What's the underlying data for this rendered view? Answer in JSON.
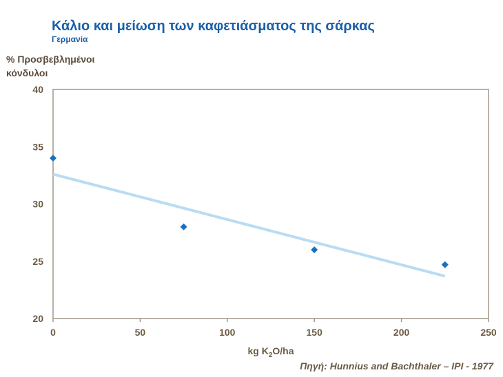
{
  "chart_data": {
    "type": "scatter",
    "title": "Κάλιο και μείωση των καφετιάσματος της σάρκας",
    "subtitle": "Γερμανία",
    "ylabel_line1": "% Προσβεβλημένοι",
    "ylabel_line2": "κόνδυλοι",
    "xlabel_prefix": "kg K",
    "xlabel_sub": "2",
    "xlabel_suffix": "O/ha",
    "xlim": [
      0,
      250
    ],
    "ylim": [
      20,
      40
    ],
    "x_ticks": [
      0,
      50,
      100,
      150,
      200,
      250
    ],
    "y_ticks": [
      20,
      25,
      30,
      35,
      40
    ],
    "x_tick_labels": [
      "0",
      "50",
      "100",
      "150",
      "200",
      "250"
    ],
    "y_tick_labels": [
      "20",
      "25",
      "30",
      "35",
      "40"
    ],
    "series": [
      {
        "name": "observations",
        "x": [
          0,
          75,
          150,
          225
        ],
        "y": [
          34,
          28,
          26,
          24.7
        ]
      }
    ],
    "trendline": {
      "x": [
        0,
        225
      ],
      "y": [
        32.6,
        23.7
      ]
    },
    "grid": false,
    "marker_color": "#1a6fc0",
    "trend_color": "#b9dcf2",
    "axis_color": "#a09888"
  },
  "source": "Πηγή: Hunnius and Bachthaler – IPI - 1977"
}
